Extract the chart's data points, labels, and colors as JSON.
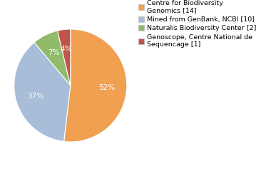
{
  "slices": [
    14,
    10,
    2,
    1
  ],
  "labels": [
    "Centre for Biodiversity\nGenomics [14]",
    "Mined from GenBank, NCBI [10]",
    "Naturalis Biodiversity Center [2]",
    "Genoscope, Centre National de\nSequencage [1]"
  ],
  "colors": [
    "#f0a050",
    "#a8bdd8",
    "#8fbb6a",
    "#c0534a"
  ],
  "startangle": 90,
  "background_color": "#ffffff",
  "text_color": "#ffffff",
  "pct_fontsize": 7.5,
  "legend_fontsize": 6.8
}
